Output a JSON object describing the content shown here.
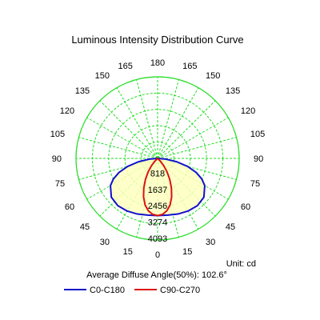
{
  "chart_data": {
    "type": "polar",
    "title": "Luminous Intensity Distribution Curve",
    "unit_label": "Unit: cd",
    "annotation": "Average Diffuse Angle(50%): 102.6°",
    "angle_labels_left": [
      "180",
      "165",
      "150",
      "135",
      "120",
      "105",
      "90",
      "75",
      "60",
      "45",
      "30",
      "15",
      "0"
    ],
    "angle_labels_right": [
      "180",
      "165",
      "150",
      "135",
      "120",
      "105",
      "90",
      "75",
      "60",
      "45",
      "30",
      "15",
      "0"
    ],
    "angle_step_deg": 15,
    "radial_ticks": [
      818,
      1637,
      2456,
      3274,
      4093
    ],
    "rmax": 4093,
    "grid_color": "#22dd22",
    "fill_color": "#ffffc0",
    "series": [
      {
        "name": "C0-C180",
        "color": "#1111cc",
        "points": [
          {
            "angle": 0,
            "value": 2870
          },
          {
            "angle": 10,
            "value": 2890
          },
          {
            "angle": 20,
            "value": 2970
          },
          {
            "angle": 30,
            "value": 3050
          },
          {
            "angle": 40,
            "value": 3100
          },
          {
            "angle": 50,
            "value": 3030
          },
          {
            "angle": 60,
            "value": 2730
          },
          {
            "angle": 65,
            "value": 2450
          },
          {
            "angle": 70,
            "value": 2060
          },
          {
            "angle": 75,
            "value": 1560
          },
          {
            "angle": 80,
            "value": 980
          },
          {
            "angle": 85,
            "value": 420
          },
          {
            "angle": 90,
            "value": 0
          }
        ]
      },
      {
        "name": "C90-C270",
        "color": "#dd1111",
        "points": [
          {
            "angle": 0,
            "value": 2870
          },
          {
            "angle": 5,
            "value": 2820
          },
          {
            "angle": 10,
            "value": 2670
          },
          {
            "angle": 15,
            "value": 2420
          },
          {
            "angle": 20,
            "value": 2060
          },
          {
            "angle": 25,
            "value": 1640
          },
          {
            "angle": 30,
            "value": 1220
          },
          {
            "angle": 35,
            "value": 830
          },
          {
            "angle": 40,
            "value": 480
          },
          {
            "angle": 45,
            "value": 200
          },
          {
            "angle": 50,
            "value": 0
          }
        ]
      }
    ]
  }
}
